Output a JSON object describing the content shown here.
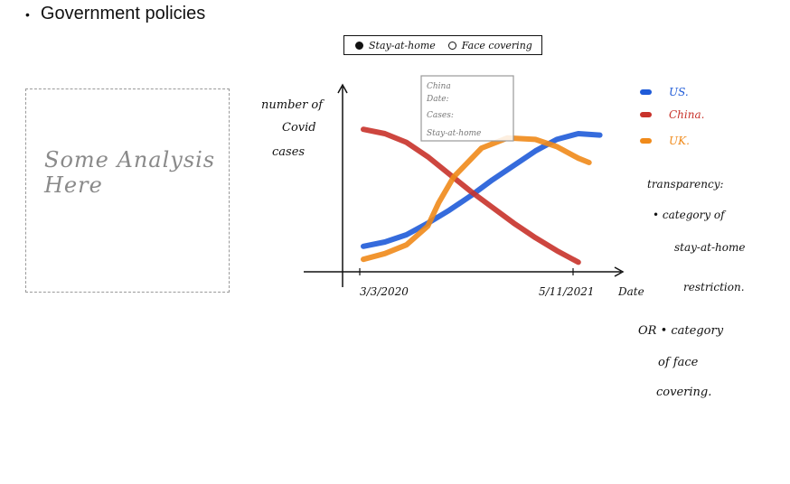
{
  "header": {
    "bullet_text": "Government policies"
  },
  "analysis_box": {
    "text": "Some Analysis Here"
  },
  "toggle": {
    "option_1": "Stay-at-home",
    "option_2": "Face covering",
    "selected": "Stay-at-home"
  },
  "tooltip": {
    "line_1": "China",
    "line_2": "Date:",
    "line_3": "Cases:",
    "line_4": "Stay-at-home"
  },
  "chart_data": {
    "type": "line",
    "title": "",
    "xlabel": "Date",
    "ylabel": "number of Covid cases",
    "x_ticks": [
      "3/3/2020",
      "5/11/2021"
    ],
    "grid": false,
    "legend_position": "right",
    "series": [
      {
        "name": "US",
        "color": "#1f5bd8",
        "x": [
          0.0,
          0.1,
          0.2,
          0.3,
          0.4,
          0.5,
          0.6,
          0.7,
          0.8,
          0.9,
          1.0,
          1.1
        ],
        "y": [
          0.12,
          0.15,
          0.2,
          0.28,
          0.37,
          0.47,
          0.58,
          0.68,
          0.78,
          0.86,
          0.9,
          0.89
        ]
      },
      {
        "name": "China",
        "color": "#c8322a",
        "x": [
          0.0,
          0.1,
          0.2,
          0.3,
          0.4,
          0.5,
          0.6,
          0.7,
          0.8,
          0.9,
          1.0
        ],
        "y": [
          0.93,
          0.9,
          0.84,
          0.74,
          0.62,
          0.5,
          0.39,
          0.28,
          0.18,
          0.09,
          0.01
        ]
      },
      {
        "name": "UK",
        "color": "#f08a1a",
        "x": [
          0.0,
          0.1,
          0.2,
          0.3,
          0.35,
          0.42,
          0.55,
          0.67,
          0.8,
          0.9,
          1.0,
          1.05
        ],
        "y": [
          0.03,
          0.07,
          0.13,
          0.26,
          0.42,
          0.6,
          0.8,
          0.87,
          0.86,
          0.81,
          0.73,
          0.7
        ]
      }
    ]
  },
  "notes": {
    "line_1": "transparency:",
    "line_2": "• category of",
    "line_3": "stay-at-home",
    "line_4": "restriction.",
    "or_line": "OR • category",
    "or_line_2": "of face",
    "or_line_3": "covering."
  }
}
